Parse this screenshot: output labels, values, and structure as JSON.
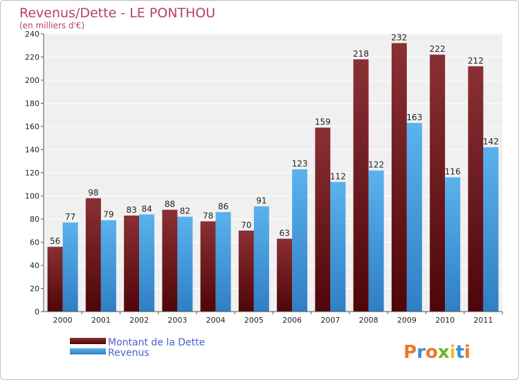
{
  "chart_data": {
    "type": "bar",
    "title": "Revenus/Dette - LE PONTHOU",
    "subtitle": "(en milliers d'€)",
    "categories": [
      "2000",
      "2001",
      "2002",
      "2003",
      "2004",
      "2005",
      "2006",
      "2007",
      "2008",
      "2009",
      "2010",
      "2011"
    ],
    "series": [
      {
        "name": "Montant de la Dette",
        "color": "#7a1f22",
        "values": [
          56,
          98,
          83,
          88,
          78,
          70,
          63,
          159,
          218,
          232,
          222,
          212
        ]
      },
      {
        "name": "Revenus",
        "color": "#4aa3e6",
        "values": [
          77,
          79,
          84,
          82,
          86,
          91,
          123,
          112,
          122,
          163,
          116,
          142
        ]
      }
    ],
    "yticks": [
      "0",
      "20",
      "40",
      "60",
      "80",
      "100",
      "120",
      "140",
      "160",
      "180",
      "200",
      "220",
      "240"
    ],
    "ylim": [
      0,
      240
    ],
    "grid": true,
    "legend_position": "bottom-left"
  },
  "brand": {
    "letters": [
      "P",
      "r",
      "o",
      "x",
      "i",
      "t",
      "i"
    ],
    "colors": [
      "#e8792b",
      "#3a8fd8",
      "#e8792b",
      "#6cb32c",
      "#e8c22b",
      "#3a8fd8",
      "#e8792b"
    ]
  }
}
